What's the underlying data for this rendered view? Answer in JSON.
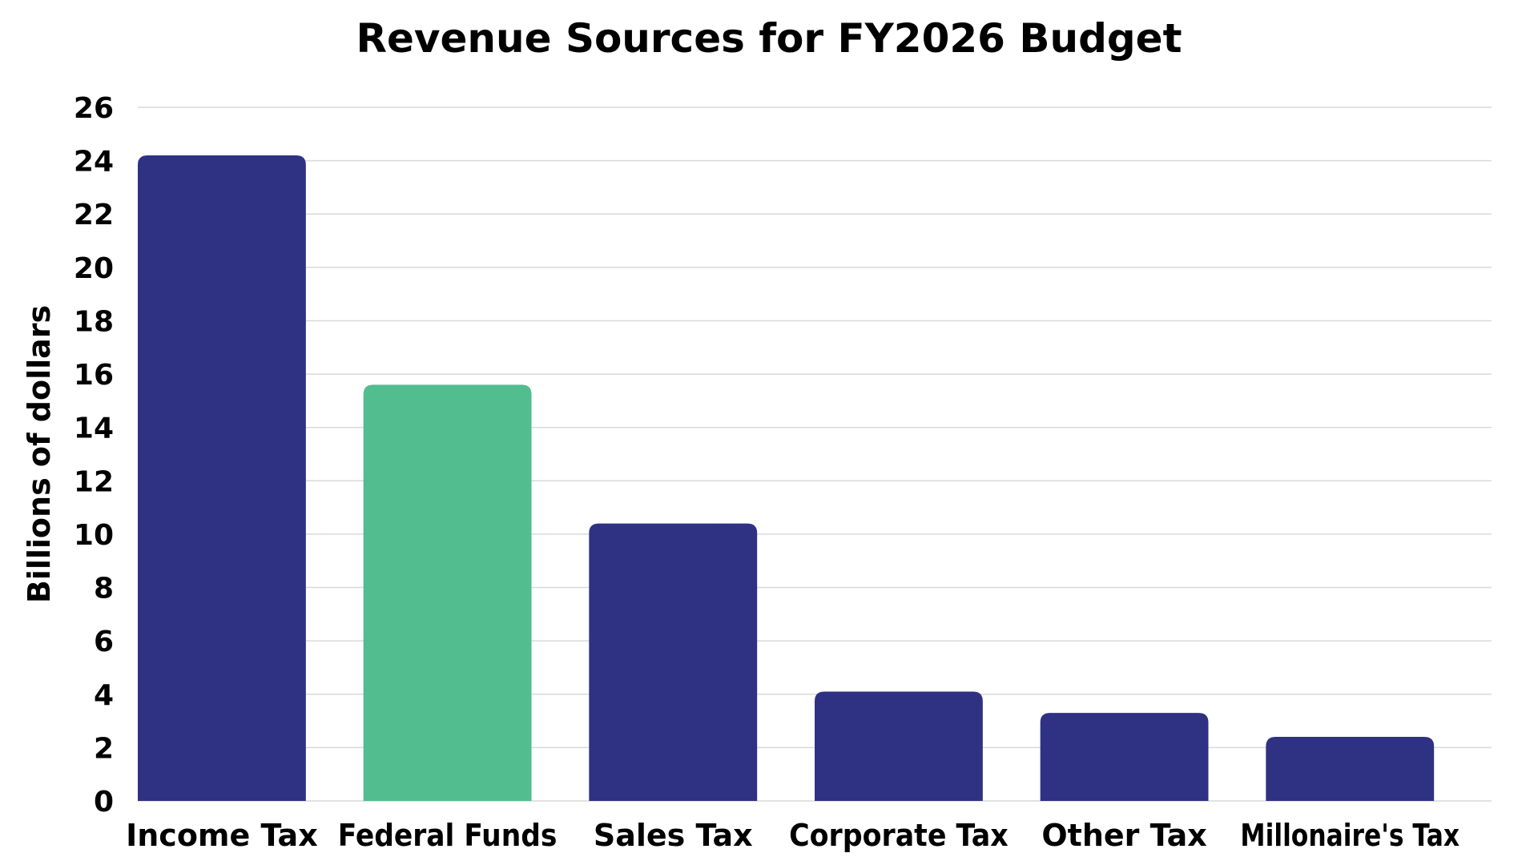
{
  "chart_data": {
    "type": "bar",
    "title": "Revenue Sources for FY2026 Budget",
    "xlabel": "",
    "ylabel": "Billions of dollars",
    "categories": [
      "Income Tax",
      "Federal Funds",
      "Sales Tax",
      "Corporate Tax",
      "Other Tax",
      "Millonaire's Tax"
    ],
    "values": [
      24.2,
      15.6,
      10.4,
      4.1,
      3.3,
      2.4
    ],
    "bar_colors": [
      "#2f3183",
      "#52bd8f",
      "#2f3183",
      "#2f3183",
      "#2f3183",
      "#2f3183"
    ],
    "ylim": [
      0,
      26
    ],
    "yticks": [
      0,
      2,
      4,
      6,
      8,
      10,
      12,
      14,
      16,
      18,
      20,
      22,
      24,
      26
    ],
    "grid": true,
    "legend": "none"
  }
}
